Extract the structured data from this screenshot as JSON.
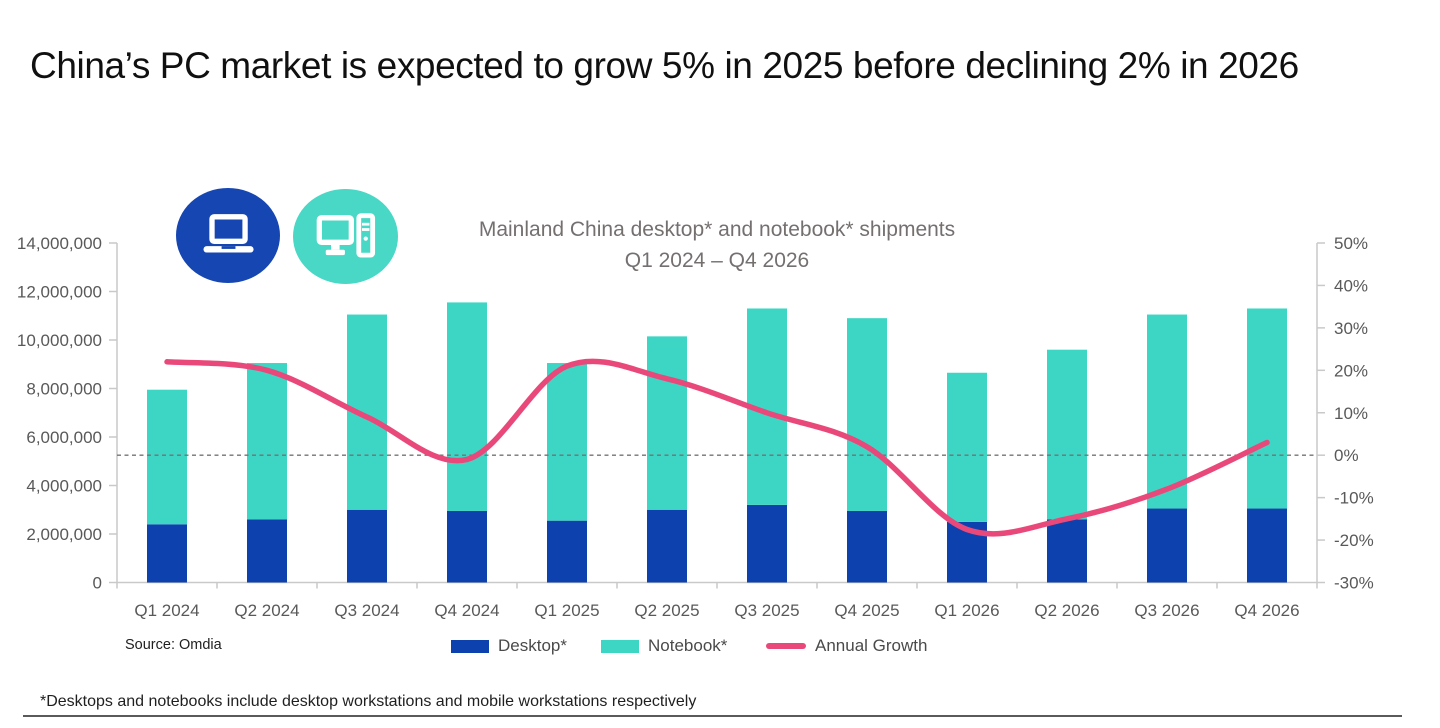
{
  "header": {
    "title": "China’s PC market is expected to grow 5% in 2025 before declining 2% in 2026"
  },
  "icons": {
    "laptop_bg": "#1546b2",
    "desktop_pc_bg": "#49d7c6",
    "glyph_color": "#ffffff"
  },
  "chart_data": {
    "type": "bar",
    "subtype": "stacked-bars-with-line-overlay",
    "title": "Mainland China desktop* and notebook* shipments",
    "subtitle": "Q1 2024 – Q4 2026",
    "categories": [
      "Q1 2024",
      "Q2 2024",
      "Q3 2024",
      "Q4 2024",
      "Q1 2025",
      "Q2 2025",
      "Q3 2025",
      "Q4 2025",
      "Q1 2026",
      "Q2 2026",
      "Q3 2026",
      "Q4 2026"
    ],
    "series": [
      {
        "name": "Desktop*",
        "kind": "bar",
        "color": "#0d41ad",
        "values": [
          2400000,
          2600000,
          3000000,
          2950000,
          2550000,
          3000000,
          3200000,
          2950000,
          2500000,
          2600000,
          3050000,
          3050000
        ]
      },
      {
        "name": "Notebook*",
        "kind": "bar",
        "color": "#3dd6c5",
        "values": [
          5550000,
          6450000,
          8050000,
          8600000,
          6500000,
          7150000,
          8100000,
          7950000,
          6150000,
          7000000,
          8000000,
          8250000
        ]
      },
      {
        "name": "Annual Growth",
        "kind": "line",
        "axis": "right",
        "color": "#e9497a",
        "values_pct": [
          22,
          20,
          9,
          -1,
          21,
          18,
          10,
          2,
          -17.5,
          -15,
          -8,
          3
        ]
      }
    ],
    "left_axis": {
      "min": 0,
      "max": 14000000,
      "tick_step": 2000000,
      "tick_labels_bottom_up": [
        "0",
        "2,000,000",
        "4,000,000",
        "6,000,000",
        "8,000,000",
        "10,000,000",
        "12,000,000",
        "14,000,000"
      ]
    },
    "right_axis": {
      "min": -30,
      "max": 50,
      "tick_step": 10,
      "tick_labels_bottom_up": [
        "-30%",
        "-20%",
        "-10%",
        "0%",
        "10%",
        "20%",
        "30%",
        "40%",
        "50%"
      ]
    },
    "zero_reference_line": "dashed",
    "grid": "off",
    "legend_position": "bottom"
  },
  "footer": {
    "source": "Source: Omdia",
    "footnote": "*Desktops and notebooks include desktop workstations and mobile workstations respectively"
  }
}
